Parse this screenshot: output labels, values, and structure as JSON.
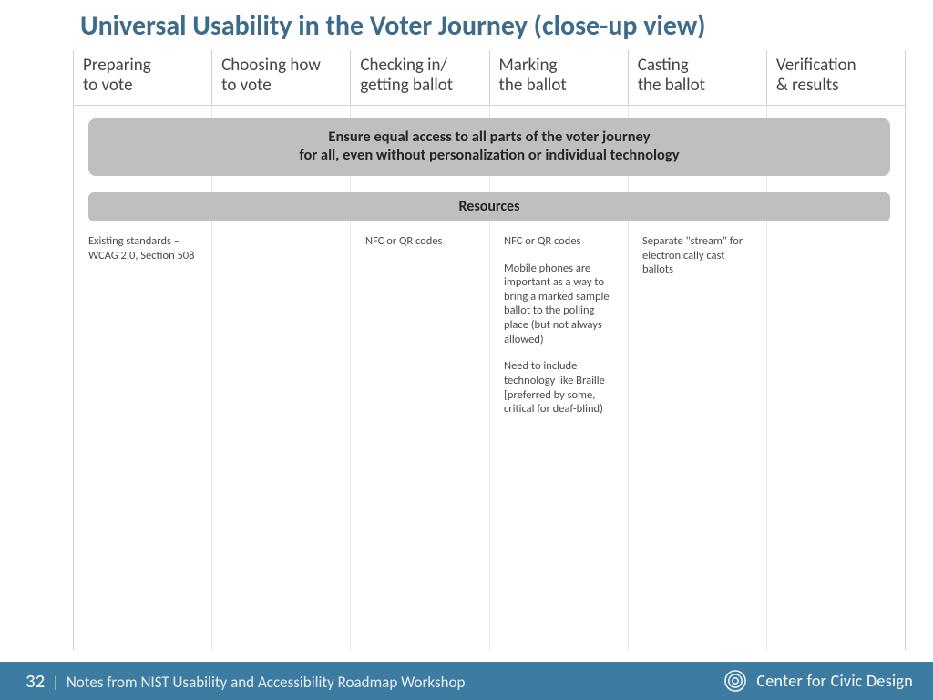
{
  "title": "Universal Usability in the Voter Journey (close-up view)",
  "columns": [
    "Preparing\nto vote",
    "Choosing how\nto vote",
    "Checking in/\ngetting ballot",
    "Marking\nthe ballot",
    "Casting\nthe ballot",
    "Verification\n& results"
  ],
  "banner_line1": "Ensure equal access to all parts of the voter journey",
  "banner_line2": "for all, even without personalization or individual technology",
  "resources_label": "Resources",
  "cells": {
    "c0": [
      "Existing standards – WCAG 2.0, Section 508"
    ],
    "c1": [],
    "c2": [
      "NFC or QR codes"
    ],
    "c3": [
      "NFC or QR codes",
      "Mobile phones are important as a way to bring a marked sample ballot to the polling place (but not always allowed)",
      "Need to include technology like Braille [preferred by some, critical for deaf-blind)"
    ],
    "c4": [
      "Separate \"stream\" for electronically cast ballots"
    ],
    "c5": []
  },
  "footer": {
    "page": "32",
    "note": "Notes from NIST Usability and Accessibility Roadmap  Workshop",
    "org": "Center for Civic Design"
  },
  "colors": {
    "title": "#3d6b8c",
    "banner_bg": "#bfbfbf",
    "footer_bg": "#3d7ba0",
    "grid_line": "#d0d0d0"
  }
}
